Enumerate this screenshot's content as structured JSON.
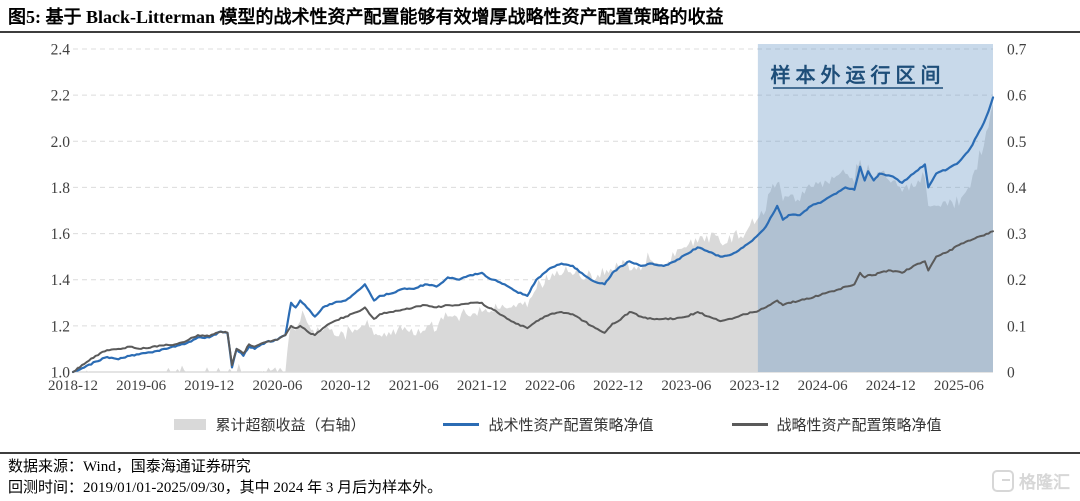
{
  "figure": {
    "title": "图5:  基于 Black-Litterman 模型的战术性资产配置能够有效增厚战略性资产配置策略的收益",
    "source_line": "数据来源：Wind，国泰海通证券研究",
    "backtest_line": "回测时间：2019/01/01-2025/09/30，其中 2024 年 3 月后为样本外。",
    "watermark_text": "格隆汇"
  },
  "colors": {
    "tactical": "#2b6cb4",
    "strategic": "#5a5a5a",
    "excess_area": "#d9d9d9",
    "region_fill": "rgba(106,152,199,0.37)",
    "region_label": "#1e4e79",
    "gridline": "#dcdcdc",
    "baseline": "#c8c8c8",
    "axis_text": "#404040"
  },
  "chart_data": {
    "type": "line+area",
    "x_ticks": [
      "2018-12",
      "2019-06",
      "2019-12",
      "2020-06",
      "2020-12",
      "2021-06",
      "2021-12",
      "2022-06",
      "2022-12",
      "2023-06",
      "2023-12",
      "2024-06",
      "2024-12",
      "2025-06"
    ],
    "x_tick_months": [
      0,
      6,
      12,
      18,
      24,
      30,
      36,
      42,
      48,
      54,
      60,
      66,
      72,
      78
    ],
    "x_months_total": 81,
    "left_axis": {
      "ticks": [
        "1.0",
        "1.2",
        "1.4",
        "1.6",
        "1.8",
        "2.0",
        "2.2",
        "2.4"
      ],
      "min": 1.0,
      "max": 2.4
    },
    "right_axis": {
      "ticks": [
        "0",
        "0.1",
        "0.2",
        "0.3",
        "0.4",
        "0.5",
        "0.6",
        "0.7"
      ],
      "min": 0,
      "max": 0.7
    },
    "sample_out_region": {
      "label": "样本外运行区间",
      "start_month": 60.3,
      "end_month": 81
    },
    "months": [
      0,
      1,
      2,
      3,
      4,
      5,
      6,
      7,
      8,
      9,
      10,
      11,
      12,
      13,
      13.6,
      14,
      14.4,
      15,
      15.5,
      16,
      17,
      18,
      18.7,
      19.2,
      19.6,
      20,
      20.8,
      21.3,
      22,
      23,
      24,
      25,
      25.7,
      26.5,
      27,
      28,
      29,
      30,
      31,
      32,
      33,
      34,
      35,
      36,
      36.5,
      37,
      38,
      39,
      40,
      40.8,
      41.5,
      42,
      43,
      44,
      45,
      46,
      46.8,
      47.5,
      48,
      49,
      50,
      51,
      52,
      53,
      54,
      55,
      56,
      57,
      58,
      59,
      60,
      61,
      62,
      62.5,
      63,
      64,
      65,
      66,
      67,
      68,
      68.8,
      69.3,
      69.7,
      70,
      70.5,
      71,
      72,
      73,
      74,
      75,
      75.3,
      76,
      77,
      78,
      79,
      80,
      80.6,
      81
    ],
    "series": [
      {
        "name": "累计超额收益（右轴）",
        "type": "area",
        "axis": "right",
        "values": [
          0,
          -0.015,
          -0.025,
          -0.03,
          -0.045,
          -0.04,
          -0.02,
          -0.025,
          -0.015,
          -0.01,
          -0.01,
          -0.01,
          -0.005,
          0,
          0,
          -0.01,
          0,
          -0.01,
          -0.01,
          -0.01,
          0,
          0,
          0,
          0.1,
          0.09,
          0.11,
          0.1,
          0.08,
          0.09,
          0.08,
          0.07,
          0.09,
          0.1,
          0.08,
          0.08,
          0.08,
          0.09,
          0.08,
          0.09,
          0.09,
          0.12,
          0.11,
          0.12,
          0.13,
          0.13,
          0.13,
          0.14,
          0.14,
          0.14,
          0.18,
          0.19,
          0.2,
          0.21,
          0.21,
          0.2,
          0.2,
          0.21,
          0.22,
          0.23,
          0.22,
          0.22,
          0.24,
          0.23,
          0.25,
          0.27,
          0.28,
          0.28,
          0.28,
          0.28,
          0.29,
          0.32,
          0.35,
          0.41,
          0.37,
          0.38,
          0.37,
          0.4,
          0.4,
          0.42,
          0.43,
          0.41,
          0.46,
          0.42,
          0.45,
          0.41,
          0.43,
          0.41,
          0.39,
          0.4,
          0.42,
          0.36,
          0.36,
          0.36,
          0.36,
          0.4,
          0.47,
          0.53,
          0.58
        ]
      },
      {
        "name": "战术性资产配置策略净值",
        "type": "line",
        "axis": "left",
        "values": [
          1.0,
          1.02,
          1.045,
          1.065,
          1.055,
          1.07,
          1.08,
          1.085,
          1.1,
          1.11,
          1.125,
          1.15,
          1.15,
          1.175,
          1.17,
          1.02,
          1.1,
          1.07,
          1.11,
          1.1,
          1.13,
          1.14,
          1.16,
          1.3,
          1.28,
          1.31,
          1.27,
          1.24,
          1.28,
          1.3,
          1.31,
          1.35,
          1.38,
          1.31,
          1.33,
          1.34,
          1.36,
          1.36,
          1.38,
          1.37,
          1.41,
          1.4,
          1.42,
          1.43,
          1.41,
          1.4,
          1.38,
          1.35,
          1.33,
          1.4,
          1.43,
          1.45,
          1.47,
          1.46,
          1.42,
          1.39,
          1.38,
          1.43,
          1.45,
          1.48,
          1.46,
          1.47,
          1.46,
          1.48,
          1.51,
          1.54,
          1.52,
          1.5,
          1.51,
          1.54,
          1.58,
          1.63,
          1.72,
          1.66,
          1.68,
          1.68,
          1.72,
          1.74,
          1.77,
          1.8,
          1.79,
          1.89,
          1.83,
          1.87,
          1.83,
          1.86,
          1.85,
          1.82,
          1.86,
          1.9,
          1.8,
          1.86,
          1.88,
          1.91,
          1.97,
          2.06,
          2.13,
          2.19
        ]
      },
      {
        "name": "战略性资产配置策略净值",
        "type": "line",
        "axis": "left",
        "values": [
          1.0,
          1.035,
          1.07,
          1.095,
          1.1,
          1.11,
          1.1,
          1.11,
          1.115,
          1.12,
          1.135,
          1.16,
          1.155,
          1.175,
          1.17,
          1.03,
          1.1,
          1.08,
          1.12,
          1.11,
          1.13,
          1.14,
          1.16,
          1.2,
          1.19,
          1.2,
          1.17,
          1.16,
          1.19,
          1.22,
          1.24,
          1.26,
          1.28,
          1.23,
          1.25,
          1.26,
          1.27,
          1.28,
          1.29,
          1.28,
          1.29,
          1.29,
          1.3,
          1.3,
          1.28,
          1.27,
          1.24,
          1.21,
          1.19,
          1.22,
          1.24,
          1.25,
          1.26,
          1.25,
          1.22,
          1.19,
          1.17,
          1.21,
          1.22,
          1.26,
          1.24,
          1.23,
          1.23,
          1.23,
          1.24,
          1.26,
          1.24,
          1.22,
          1.23,
          1.25,
          1.26,
          1.28,
          1.31,
          1.29,
          1.3,
          1.31,
          1.32,
          1.34,
          1.35,
          1.37,
          1.38,
          1.43,
          1.41,
          1.42,
          1.42,
          1.43,
          1.44,
          1.43,
          1.46,
          1.48,
          1.44,
          1.5,
          1.52,
          1.55,
          1.57,
          1.59,
          1.6,
          1.61
        ]
      }
    ]
  }
}
